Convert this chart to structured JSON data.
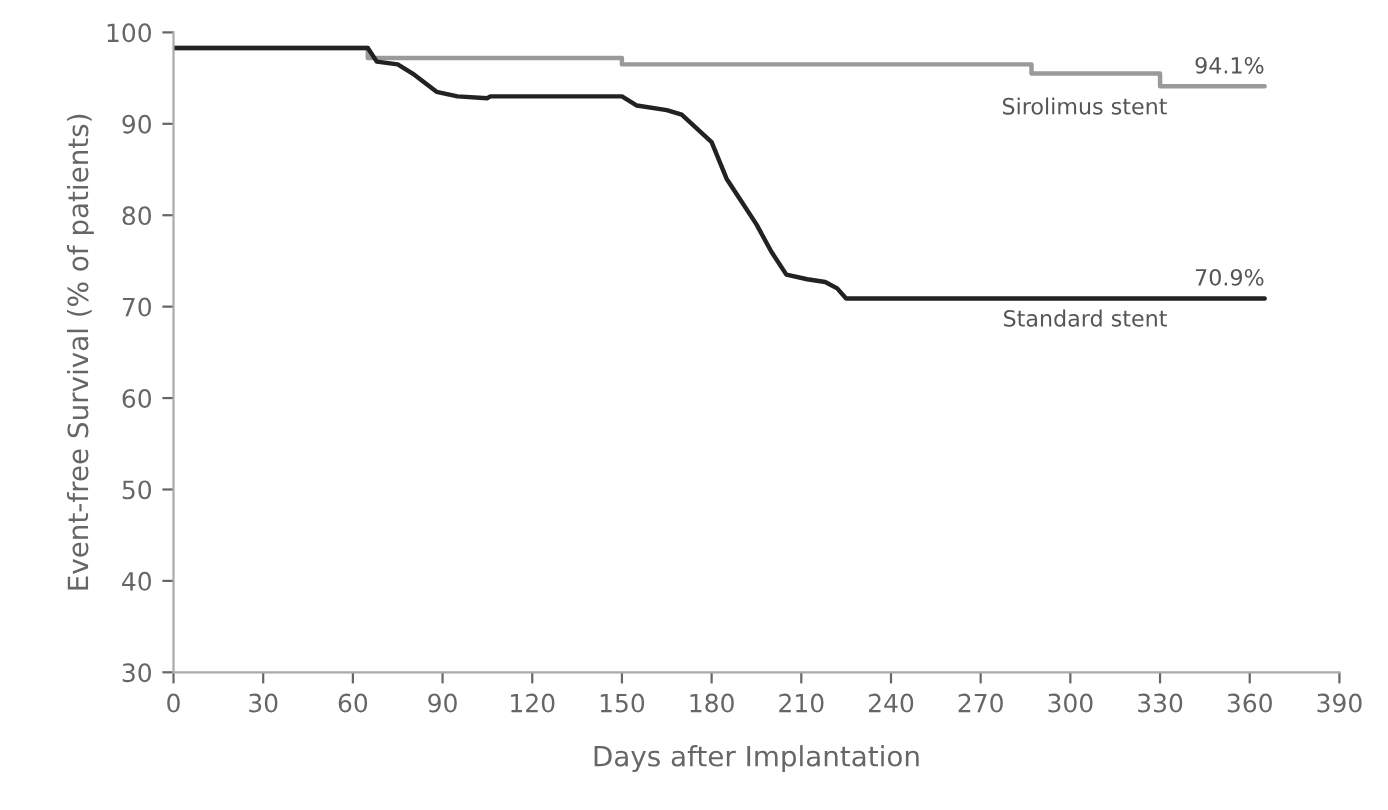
{
  "chart_data": {
    "type": "line",
    "xlabel": "Days after Implantation",
    "ylabel": "Event-free Survival (% of patients)",
    "xlim": [
      0,
      390
    ],
    "xticks": [
      0,
      30,
      60,
      90,
      120,
      150,
      180,
      210,
      240,
      270,
      300,
      330,
      360,
      390
    ],
    "ylim": [
      30,
      100
    ],
    "yticks": [
      30,
      40,
      50,
      60,
      70,
      80,
      90,
      100
    ],
    "grid": false,
    "legend": false,
    "marker": "none",
    "line_style": "solid",
    "series": [
      {
        "type": "step",
        "name": "Sirolimus stent",
        "color": "#9a9a9a",
        "x": [
          0,
          65,
          150,
          287,
          330,
          365
        ],
        "values": [
          98.3,
          97.2,
          96.5,
          95.5,
          94.1,
          94.1
        ]
      },
      {
        "name": "Standard stent",
        "color": "#222222",
        "x": [
          0,
          65,
          68,
          75,
          80,
          88,
          95,
          105,
          106,
          150,
          155,
          165,
          170,
          175,
          180,
          185,
          190,
          195,
          200,
          205,
          212,
          218,
          222,
          225,
          365
        ],
        "values": [
          98.3,
          98.3,
          96.8,
          96.5,
          95.5,
          93.5,
          93,
          92.8,
          93,
          93,
          92,
          91.5,
          91,
          89.5,
          88,
          84,
          81.5,
          79,
          76,
          73.5,
          73,
          72.7,
          72,
          70.9,
          70.9
        ]
      }
    ],
    "annotations": [
      {
        "text": "94.1%",
        "x": 365,
        "y": 94.1
      },
      {
        "text": "70.9%",
        "x": 365,
        "y": 70.9
      }
    ]
  }
}
